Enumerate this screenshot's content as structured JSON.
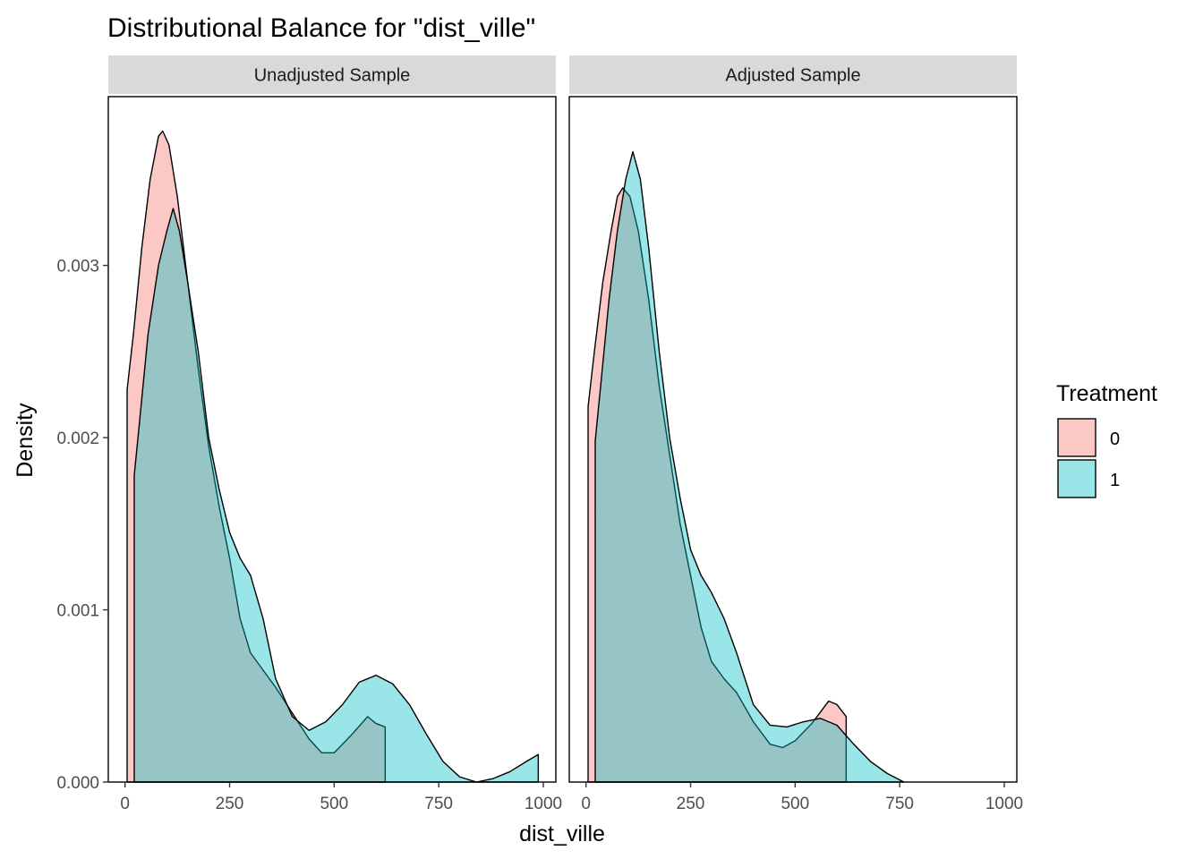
{
  "chart_data": {
    "type": "area",
    "title": "Distributional Balance for \"dist_ville\"",
    "xlabel": "dist_ville",
    "ylabel": "Density",
    "xlim": [
      -40,
      1030
    ],
    "ylim": [
      0,
      0.00398
    ],
    "x_ticks": [
      0,
      250,
      500,
      750,
      1000
    ],
    "x_tick_labels": [
      "0",
      "250",
      "500",
      "750",
      "1000"
    ],
    "y_ticks": [
      0,
      0.001,
      0.002,
      0.003
    ],
    "y_tick_labels": [
      "0.000",
      "0.001",
      "0.002",
      "0.003"
    ],
    "grid": false,
    "legend": {
      "title": "Treatment",
      "position": "right",
      "entries": [
        {
          "label": "0",
          "color": "#F8766D"
        },
        {
          "label": "1",
          "color": "#00BFC4"
        }
      ]
    },
    "panels": [
      {
        "strip": "Unadjusted Sample",
        "series": [
          {
            "treatment": "0",
            "color": "#F8766D",
            "points": [
              [
                5,
                0
              ],
              [
                5,
                0.00228
              ],
              [
                20,
                0.0026
              ],
              [
                40,
                0.0031
              ],
              [
                60,
                0.0035
              ],
              [
                80,
                0.00375
              ],
              [
                90,
                0.00378
              ],
              [
                105,
                0.0037
              ],
              [
                125,
                0.0034
              ],
              [
                150,
                0.0029
              ],
              [
                175,
                0.0024
              ],
              [
                200,
                0.00195
              ],
              [
                225,
                0.0016
              ],
              [
                250,
                0.0013
              ],
              [
                275,
                0.00095
              ],
              [
                300,
                0.00075
              ],
              [
                330,
                0.00065
              ],
              [
                360,
                0.00055
              ],
              [
                400,
                0.0004
              ],
              [
                440,
                0.00025
              ],
              [
                470,
                0.00017
              ],
              [
                500,
                0.00017
              ],
              [
                540,
                0.00027
              ],
              [
                580,
                0.00038
              ],
              [
                600,
                0.00034
              ],
              [
                622,
                0.00032
              ],
              [
                622,
                0
              ]
            ]
          },
          {
            "treatment": "1",
            "color": "#00BFC4",
            "points": [
              [
                22,
                0
              ],
              [
                22,
                0.00178
              ],
              [
                35,
                0.0021
              ],
              [
                55,
                0.0026
              ],
              [
                80,
                0.003
              ],
              [
                100,
                0.0032
              ],
              [
                115,
                0.00333
              ],
              [
                130,
                0.0032
              ],
              [
                150,
                0.0029
              ],
              [
                175,
                0.0025
              ],
              [
                200,
                0.002
              ],
              [
                225,
                0.0017
              ],
              [
                250,
                0.00145
              ],
              [
                275,
                0.0013
              ],
              [
                300,
                0.0012
              ],
              [
                330,
                0.00095
              ],
              [
                360,
                0.0006
              ],
              [
                400,
                0.00038
              ],
              [
                440,
                0.0003
              ],
              [
                480,
                0.00035
              ],
              [
                520,
                0.00045
              ],
              [
                560,
                0.00058
              ],
              [
                600,
                0.00062
              ],
              [
                640,
                0.00057
              ],
              [
                680,
                0.00045
              ],
              [
                720,
                0.00028
              ],
              [
                760,
                0.00012
              ],
              [
                800,
                3e-05
              ],
              [
                840,
                0.0
              ],
              [
                880,
                2e-05
              ],
              [
                920,
                6e-05
              ],
              [
                960,
                0.00012
              ],
              [
                988,
                0.00016
              ],
              [
                988,
                0
              ]
            ]
          }
        ]
      },
      {
        "strip": "Adjusted Sample",
        "series": [
          {
            "treatment": "0",
            "color": "#F8766D",
            "points": [
              [
                5,
                0
              ],
              [
                5,
                0.00218
              ],
              [
                20,
                0.0025
              ],
              [
                40,
                0.0029
              ],
              [
                60,
                0.0032
              ],
              [
                75,
                0.0034
              ],
              [
                88,
                0.00345
              ],
              [
                105,
                0.0034
              ],
              [
                125,
                0.0032
              ],
              [
                150,
                0.0028
              ],
              [
                175,
                0.0023
              ],
              [
                200,
                0.0019
              ],
              [
                225,
                0.0015
              ],
              [
                250,
                0.0012
              ],
              [
                275,
                0.0009
              ],
              [
                300,
                0.0007
              ],
              [
                330,
                0.0006
              ],
              [
                360,
                0.00052
              ],
              [
                400,
                0.00035
              ],
              [
                440,
                0.00022
              ],
              [
                470,
                0.0002
              ],
              [
                500,
                0.00024
              ],
              [
                540,
                0.00034
              ],
              [
                580,
                0.00047
              ],
              [
                600,
                0.00045
              ],
              [
                622,
                0.00038
              ],
              [
                622,
                0
              ]
            ]
          },
          {
            "treatment": "1",
            "color": "#00BFC4",
            "points": [
              [
                22,
                0
              ],
              [
                22,
                0.00198
              ],
              [
                35,
                0.0023
              ],
              [
                55,
                0.0028
              ],
              [
                75,
                0.0032
              ],
              [
                95,
                0.0035
              ],
              [
                112,
                0.00366
              ],
              [
                130,
                0.0035
              ],
              [
                150,
                0.0031
              ],
              [
                175,
                0.0025
              ],
              [
                200,
                0.002
              ],
              [
                225,
                0.00165
              ],
              [
                250,
                0.00135
              ],
              [
                275,
                0.0012
              ],
              [
                300,
                0.0011
              ],
              [
                330,
                0.00095
              ],
              [
                360,
                0.00075
              ],
              [
                400,
                0.00045
              ],
              [
                440,
                0.00033
              ],
              [
                480,
                0.00032
              ],
              [
                520,
                0.00035
              ],
              [
                560,
                0.00037
              ],
              [
                600,
                0.00033
              ],
              [
                640,
                0.00022
              ],
              [
                680,
                0.00012
              ],
              [
                720,
                5e-05
              ],
              [
                760,
                0.0
              ]
            ]
          }
        ]
      }
    ]
  }
}
